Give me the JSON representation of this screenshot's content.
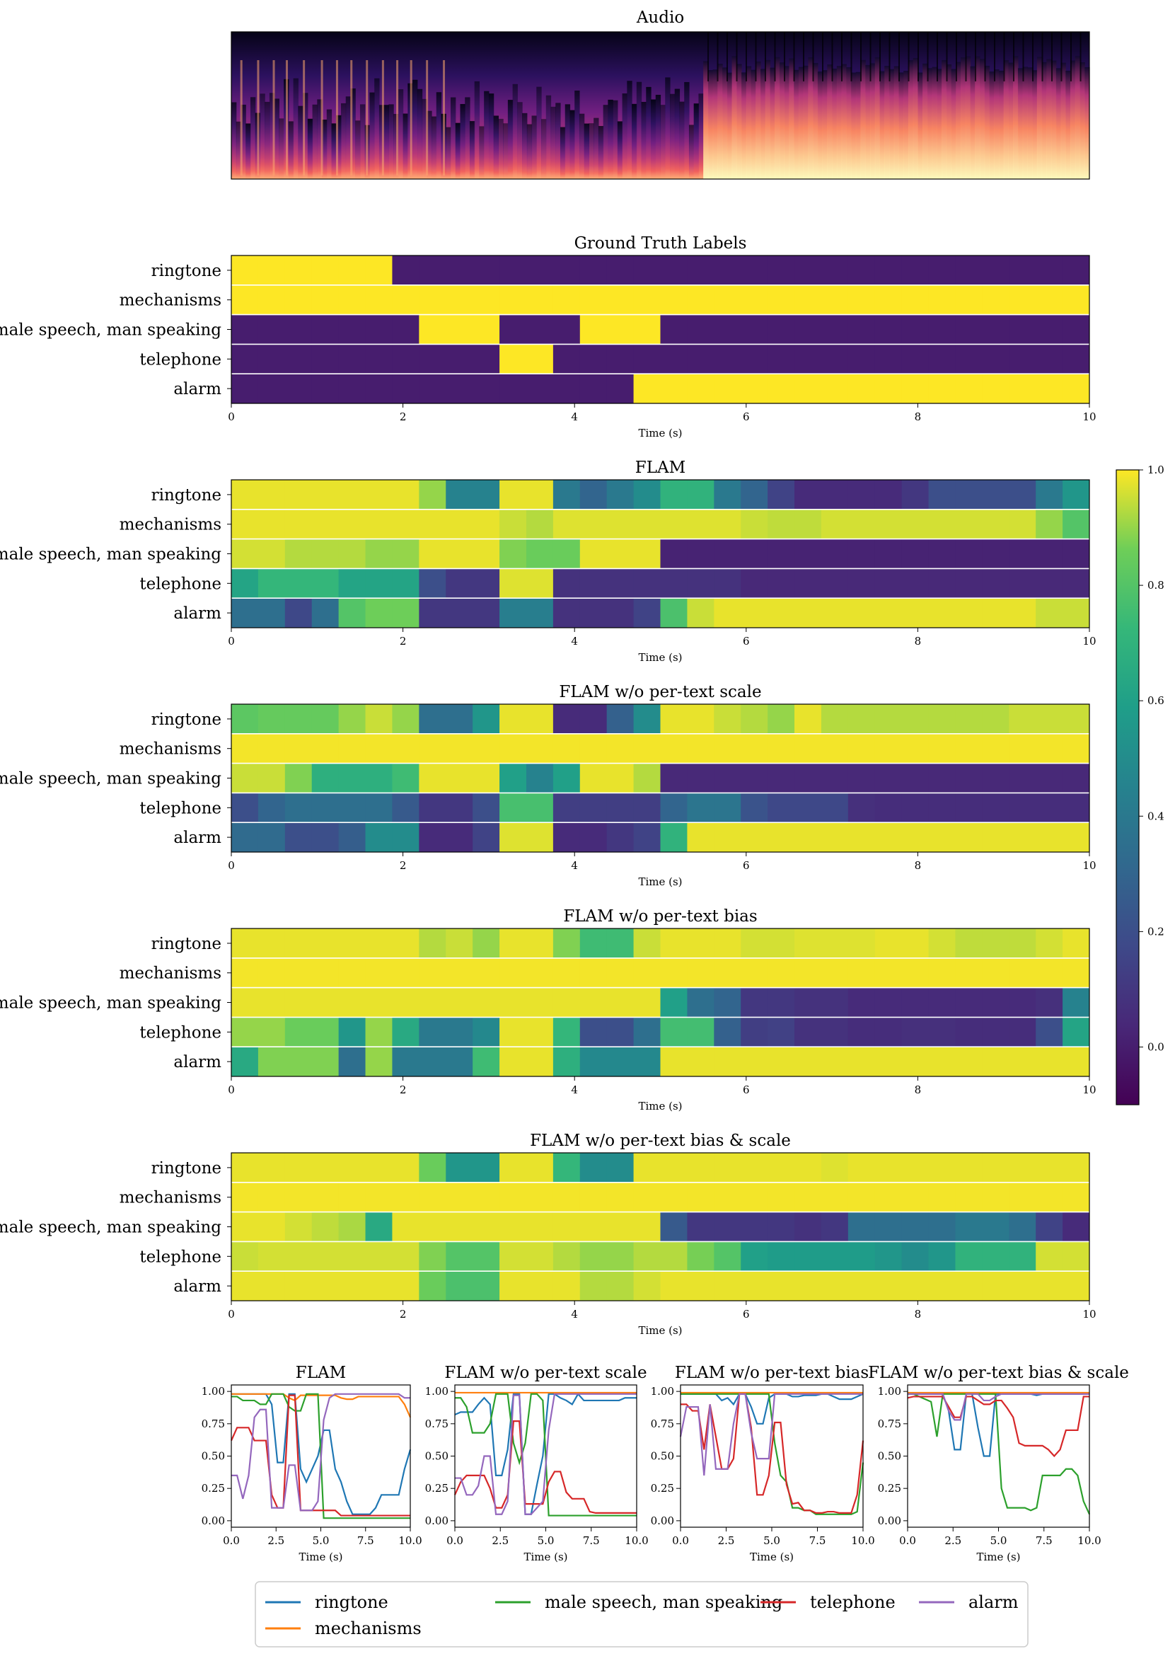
{
  "colors": {
    "ringtone": "#1f77b4",
    "mechanisms": "#ff7f0e",
    "male_speech": "#2ca02c",
    "telephone": "#d62728",
    "alarm": "#9467bd"
  },
  "chart_data": [
    {
      "id": "audio",
      "type": "heatmap",
      "title": "Audio",
      "description_only_for_render": "spectrogram"
    },
    {
      "id": "ground_truth",
      "type": "heatmap",
      "title": "Ground Truth Labels",
      "xlabel": "Time (s)",
      "xlim": [
        0,
        10
      ],
      "xticks": [
        "0",
        "2",
        "4",
        "6",
        "8",
        "10"
      ],
      "rows": [
        "ringtone",
        "mechanisms",
        "male speech, man speaking",
        "telephone",
        "alarm"
      ],
      "values": [
        [
          1,
          1,
          1,
          1,
          1,
          1,
          0,
          0,
          0,
          0,
          0,
          0,
          0,
          0,
          0,
          0,
          0,
          0,
          0,
          0,
          0,
          0,
          0,
          0,
          0,
          0,
          0,
          0,
          0,
          0,
          0,
          0
        ],
        [
          1,
          1,
          1,
          1,
          1,
          1,
          1,
          1,
          1,
          1,
          1,
          1,
          1,
          1,
          1,
          1,
          1,
          1,
          1,
          1,
          1,
          1,
          1,
          1,
          1,
          1,
          1,
          1,
          1,
          1,
          1,
          1
        ],
        [
          0,
          0,
          0,
          0,
          0,
          0,
          0,
          1,
          1,
          1,
          0,
          0,
          0,
          1,
          1,
          1,
          0,
          0,
          0,
          0,
          0,
          0,
          0,
          0,
          0,
          0,
          0,
          0,
          0,
          0,
          0,
          0
        ],
        [
          0,
          0,
          0,
          0,
          0,
          0,
          0,
          0,
          0,
          0,
          1,
          1,
          0,
          0,
          0,
          0,
          0,
          0,
          0,
          0,
          0,
          0,
          0,
          0,
          0,
          0,
          0,
          0,
          0,
          0,
          0,
          0
        ],
        [
          0,
          0,
          0,
          0,
          0,
          0,
          0,
          0,
          0,
          0,
          0,
          0,
          0,
          0,
          0,
          1,
          1,
          1,
          1,
          1,
          1,
          1,
          1,
          1,
          1,
          1,
          1,
          1,
          1,
          1,
          1,
          1
        ]
      ]
    },
    {
      "id": "flam",
      "type": "heatmap",
      "title": "FLAM",
      "xlabel": "Time (s)",
      "xlim": [
        0,
        10
      ],
      "xticks": [
        "0",
        "2",
        "4",
        "6",
        "8",
        "10"
      ],
      "rows": [
        "ringtone",
        "mechanisms",
        "male speech, man speaking",
        "telephone",
        "alarm"
      ],
      "values": [
        [
          0.98,
          0.98,
          0.98,
          0.98,
          0.98,
          0.98,
          0.98,
          0.9,
          0.45,
          0.45,
          0.98,
          0.98,
          0.4,
          0.3,
          0.4,
          0.5,
          0.7,
          0.7,
          0.4,
          0.3,
          0.15,
          0.05,
          0.05,
          0.05,
          0.05,
          0.1,
          0.2,
          0.2,
          0.2,
          0.2,
          0.4,
          0.55
        ],
        [
          0.98,
          0.98,
          0.98,
          0.98,
          0.98,
          0.98,
          0.98,
          0.98,
          0.98,
          0.98,
          0.95,
          0.93,
          0.97,
          0.97,
          0.97,
          0.97,
          0.97,
          0.97,
          0.97,
          0.95,
          0.94,
          0.94,
          0.96,
          0.96,
          0.96,
          0.96,
          0.96,
          0.96,
          0.96,
          0.96,
          0.9,
          0.8
        ],
        [
          0.96,
          0.96,
          0.93,
          0.93,
          0.93,
          0.9,
          0.9,
          0.98,
          0.98,
          0.98,
          0.88,
          0.85,
          0.85,
          0.98,
          0.98,
          0.98,
          0.02,
          0.02,
          0.02,
          0.02,
          0.02,
          0.02,
          0.02,
          0.02,
          0.02,
          0.02,
          0.02,
          0.02,
          0.02,
          0.02,
          0.02,
          0.02
        ],
        [
          0.62,
          0.72,
          0.72,
          0.72,
          0.62,
          0.62,
          0.62,
          0.2,
          0.1,
          0.1,
          0.97,
          0.97,
          0.08,
          0.08,
          0.08,
          0.08,
          0.08,
          0.08,
          0.08,
          0.04,
          0.04,
          0.04,
          0.04,
          0.04,
          0.04,
          0.04,
          0.04,
          0.04,
          0.04,
          0.04,
          0.04,
          0.04
        ],
        [
          0.35,
          0.35,
          0.17,
          0.35,
          0.8,
          0.86,
          0.86,
          0.1,
          0.1,
          0.1,
          0.43,
          0.43,
          0.08,
          0.08,
          0.08,
          0.15,
          0.78,
          0.95,
          0.98,
          0.98,
          0.98,
          0.98,
          0.98,
          0.98,
          0.98,
          0.98,
          0.98,
          0.98,
          0.98,
          0.98,
          0.95,
          0.95
        ]
      ]
    },
    {
      "id": "flam_no_scale",
      "type": "heatmap",
      "title": "FLAM w/o per-text scale",
      "xlabel": "Time (s)",
      "xlim": [
        0,
        10
      ],
      "xticks": [
        "0",
        "2",
        "4",
        "6",
        "8",
        "10"
      ],
      "rows": [
        "ringtone",
        "mechanisms",
        "male speech, man speaking",
        "telephone",
        "alarm"
      ],
      "values": [
        [
          0.82,
          0.84,
          0.84,
          0.84,
          0.9,
          0.95,
          0.9,
          0.35,
          0.35,
          0.55,
          0.98,
          0.98,
          0.05,
          0.05,
          0.28,
          0.5,
          0.98,
          0.98,
          0.95,
          0.93,
          0.9,
          0.98,
          0.93,
          0.93,
          0.93,
          0.93,
          0.93,
          0.93,
          0.93,
          0.95,
          0.95,
          0.95
        ],
        [
          0.99,
          0.99,
          0.99,
          0.99,
          0.99,
          0.99,
          0.99,
          0.99,
          0.99,
          0.99,
          0.99,
          0.99,
          0.99,
          0.99,
          0.99,
          0.99,
          0.99,
          0.99,
          0.99,
          0.99,
          0.99,
          0.99,
          0.99,
          0.99,
          0.99,
          0.99,
          0.99,
          0.99,
          0.99,
          0.99,
          0.99,
          0.99
        ],
        [
          0.95,
          0.95,
          0.88,
          0.68,
          0.68,
          0.68,
          0.75,
          0.98,
          0.98,
          0.98,
          0.6,
          0.45,
          0.6,
          0.98,
          0.98,
          0.93,
          0.04,
          0.04,
          0.04,
          0.04,
          0.04,
          0.04,
          0.04,
          0.04,
          0.04,
          0.04,
          0.04,
          0.04,
          0.04,
          0.04,
          0.04,
          0.04
        ],
        [
          0.2,
          0.3,
          0.35,
          0.35,
          0.35,
          0.35,
          0.25,
          0.1,
          0.1,
          0.2,
          0.77,
          0.77,
          0.13,
          0.13,
          0.13,
          0.13,
          0.3,
          0.38,
          0.38,
          0.22,
          0.17,
          0.17,
          0.17,
          0.07,
          0.06,
          0.06,
          0.06,
          0.06,
          0.06,
          0.06,
          0.06,
          0.06
        ],
        [
          0.33,
          0.33,
          0.2,
          0.2,
          0.27,
          0.5,
          0.5,
          0.05,
          0.05,
          0.15,
          0.97,
          0.97,
          0.05,
          0.05,
          0.1,
          0.15,
          0.7,
          0.98,
          0.98,
          0.98,
          0.98,
          0.98,
          0.98,
          0.98,
          0.98,
          0.98,
          0.98,
          0.98,
          0.98,
          0.98,
          0.98,
          0.98
        ]
      ]
    },
    {
      "id": "flam_no_bias",
      "type": "heatmap",
      "title": "FLAM w/o per-text bias",
      "xlabel": "Time (s)",
      "xlim": [
        0,
        10
      ],
      "xticks": [
        "0",
        "2",
        "4",
        "6",
        "8",
        "10"
      ],
      "rows": [
        "ringtone",
        "mechanisms",
        "male speech, man speaking",
        "telephone",
        "alarm"
      ],
      "values": [
        [
          0.98,
          0.98,
          0.98,
          0.98,
          0.98,
          0.98,
          0.98,
          0.93,
          0.95,
          0.9,
          0.98,
          0.98,
          0.88,
          0.75,
          0.75,
          0.95,
          0.98,
          0.98,
          0.98,
          0.96,
          0.96,
          0.97,
          0.97,
          0.97,
          0.98,
          0.98,
          0.96,
          0.94,
          0.94,
          0.94,
          0.96,
          0.98
        ],
        [
          0.99,
          0.99,
          0.99,
          0.99,
          0.99,
          0.99,
          0.99,
          0.99,
          0.99,
          0.99,
          0.99,
          0.99,
          0.99,
          0.99,
          0.99,
          0.99,
          0.99,
          0.99,
          0.99,
          0.99,
          0.99,
          0.99,
          0.99,
          0.99,
          0.99,
          0.99,
          0.99,
          0.99,
          0.99,
          0.99,
          0.99,
          0.99
        ],
        [
          0.98,
          0.98,
          0.98,
          0.98,
          0.98,
          0.98,
          0.98,
          0.98,
          0.98,
          0.98,
          0.98,
          0.98,
          0.98,
          0.98,
          0.98,
          0.98,
          0.6,
          0.35,
          0.3,
          0.1,
          0.1,
          0.08,
          0.08,
          0.05,
          0.05,
          0.05,
          0.05,
          0.05,
          0.05,
          0.05,
          0.07,
          0.45
        ],
        [
          0.9,
          0.9,
          0.85,
          0.85,
          0.55,
          0.9,
          0.65,
          0.4,
          0.4,
          0.48,
          0.98,
          0.98,
          0.72,
          0.2,
          0.2,
          0.35,
          0.76,
          0.76,
          0.28,
          0.13,
          0.14,
          0.08,
          0.08,
          0.06,
          0.06,
          0.07,
          0.07,
          0.06,
          0.06,
          0.06,
          0.2,
          0.62
        ],
        [
          0.65,
          0.88,
          0.88,
          0.88,
          0.35,
          0.9,
          0.4,
          0.4,
          0.4,
          0.75,
          0.98,
          0.98,
          0.68,
          0.48,
          0.48,
          0.48,
          0.98,
          0.98,
          0.98,
          0.98,
          0.98,
          0.98,
          0.98,
          0.98,
          0.98,
          0.98,
          0.98,
          0.98,
          0.98,
          0.98,
          0.98,
          0.98
        ]
      ]
    },
    {
      "id": "flam_no_bias_scale",
      "type": "heatmap",
      "title": "FLAM w/o per-text bias & scale",
      "xlabel": "Time (s)",
      "xlim": [
        0,
        10
      ],
      "xticks": [
        "0",
        "2",
        "4",
        "6",
        "8",
        "10"
      ],
      "rows": [
        "ringtone",
        "mechanisms",
        "male speech, man speaking",
        "telephone",
        "alarm"
      ],
      "values": [
        [
          0.98,
          0.98,
          0.98,
          0.98,
          0.98,
          0.98,
          0.98,
          0.85,
          0.55,
          0.55,
          0.98,
          0.98,
          0.72,
          0.5,
          0.5,
          0.98,
          0.98,
          0.98,
          0.98,
          0.98,
          0.98,
          0.98,
          0.97,
          0.98,
          0.98,
          0.98,
          0.98,
          0.98,
          0.98,
          0.98,
          0.98,
          0.98
        ],
        [
          0.99,
          0.99,
          0.99,
          0.99,
          0.99,
          0.99,
          0.99,
          0.99,
          0.99,
          0.99,
          0.99,
          0.99,
          0.99,
          0.99,
          0.99,
          0.99,
          0.99,
          0.99,
          0.99,
          0.99,
          0.99,
          0.99,
          0.99,
          0.99,
          0.99,
          0.99,
          0.99,
          0.99,
          0.99,
          0.99,
          0.99,
          0.99
        ],
        [
          0.98,
          0.98,
          0.96,
          0.94,
          0.92,
          0.65,
          0.98,
          0.98,
          0.98,
          0.98,
          0.98,
          0.98,
          0.98,
          0.98,
          0.98,
          0.98,
          0.25,
          0.1,
          0.1,
          0.1,
          0.1,
          0.08,
          0.1,
          0.35,
          0.35,
          0.35,
          0.35,
          0.4,
          0.4,
          0.35,
          0.15,
          0.05
        ],
        [
          0.95,
          0.96,
          0.96,
          0.96,
          0.96,
          0.96,
          0.96,
          0.88,
          0.8,
          0.8,
          0.96,
          0.96,
          0.93,
          0.9,
          0.9,
          0.93,
          0.93,
          0.87,
          0.8,
          0.6,
          0.58,
          0.58,
          0.58,
          0.58,
          0.55,
          0.5,
          0.55,
          0.7,
          0.7,
          0.7,
          0.96,
          0.96
        ],
        [
          0.98,
          0.98,
          0.98,
          0.98,
          0.98,
          0.98,
          0.98,
          0.85,
          0.78,
          0.78,
          0.98,
          0.98,
          0.98,
          0.93,
          0.93,
          0.96,
          0.98,
          0.98,
          0.98,
          0.98,
          0.98,
          0.98,
          0.98,
          0.98,
          0.98,
          0.98,
          0.98,
          0.98,
          0.98,
          0.98,
          0.98,
          0.98
        ]
      ]
    },
    {
      "id": "colorbar",
      "type": "colorbar",
      "range": [
        -0.1,
        1.0
      ],
      "ticks": [
        "1.0",
        "0.8",
        "0.6",
        "0.4",
        "0.2",
        "0.0"
      ],
      "tick_values": [
        1.0,
        0.8,
        0.6,
        0.4,
        0.2,
        0.0
      ]
    },
    {
      "id": "lines",
      "type": "line",
      "xlabel": "Time (s)",
      "xlim": [
        0,
        10
      ],
      "ylim": [
        -0.05,
        1.05
      ],
      "xticks": [
        "0.0",
        "2.5",
        "5.0",
        "7.5",
        "10.0"
      ],
      "yticks": [
        "0.00",
        "0.25",
        "0.50",
        "0.75",
        "1.00"
      ],
      "panels": [
        {
          "title": "FLAM",
          "source": "flam"
        },
        {
          "title": "FLAM w/o per-text scale",
          "source": "flam_no_scale"
        },
        {
          "title": "FLAM w/o per-text bias",
          "source": "flam_no_bias"
        },
        {
          "title": "FLAM w/o per-text bias & scale",
          "source": "flam_no_bias_scale"
        }
      ]
    }
  ],
  "legend": {
    "items": [
      {
        "label": "ringtone",
        "color": "#1f77b4"
      },
      {
        "label": "male speech, man speaking",
        "color": "#2ca02c"
      },
      {
        "label": "telephone",
        "color": "#d62728"
      },
      {
        "label": "alarm",
        "color": "#9467bd"
      },
      {
        "label": "mechanisms",
        "color": "#ff7f0e"
      }
    ]
  }
}
